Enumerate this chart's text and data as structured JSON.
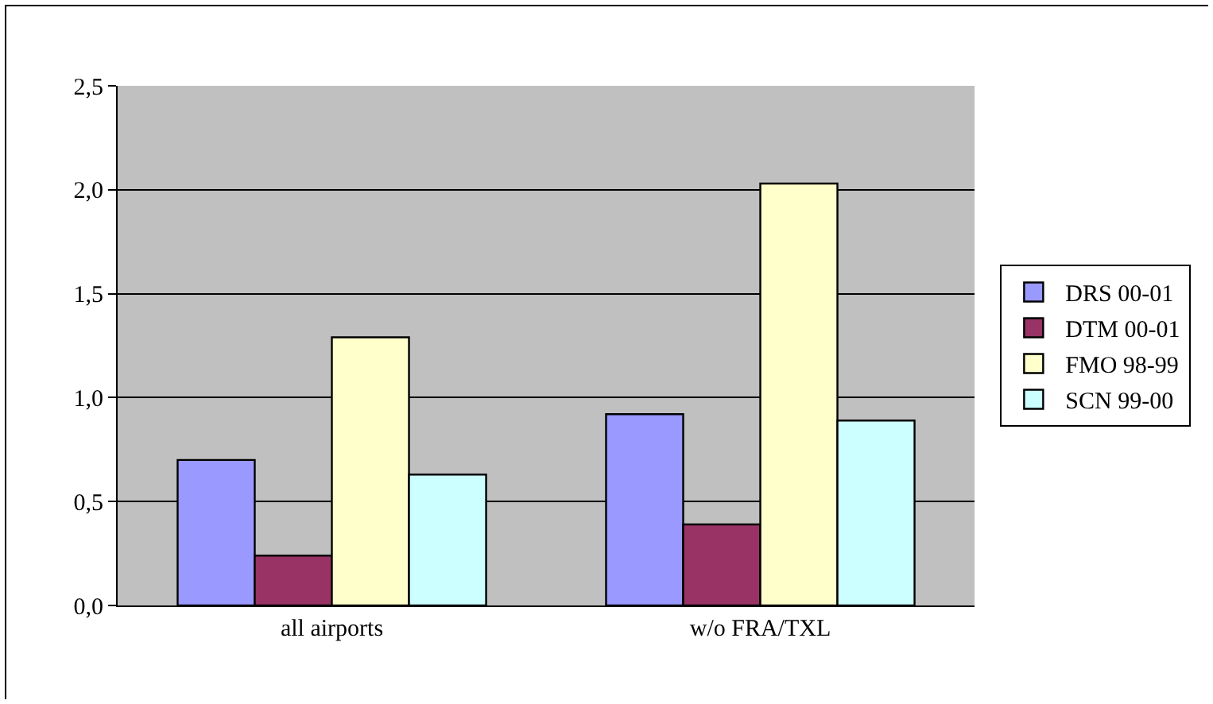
{
  "chart_data": {
    "type": "bar",
    "categories": [
      "all airports",
      "w/o FRA/TXL"
    ],
    "series": [
      {
        "name": "DRS 00-01",
        "color": "#9999ff",
        "values": [
          0.7,
          0.92
        ]
      },
      {
        "name": "DTM 00-01",
        "color": "#993366",
        "values": [
          0.24,
          0.39
        ]
      },
      {
        "name": "FMO 98-99",
        "color": "#ffffcc",
        "values": [
          1.29,
          2.03
        ]
      },
      {
        "name": "SCN 99-00",
        "color": "#ccffff",
        "values": [
          0.63,
          0.89
        ]
      }
    ],
    "ylim": [
      0,
      2.5
    ],
    "yticks": [
      {
        "value": 0,
        "label": "0,0"
      },
      {
        "value": 0.5,
        "label": "0,5"
      },
      {
        "value": 1,
        "label": "1,0"
      },
      {
        "value": 1.5,
        "label": "1,5"
      },
      {
        "value": 2,
        "label": "2,0"
      },
      {
        "value": 2.5,
        "label": "2,5"
      }
    ],
    "grid": "y",
    "legend": "right"
  }
}
